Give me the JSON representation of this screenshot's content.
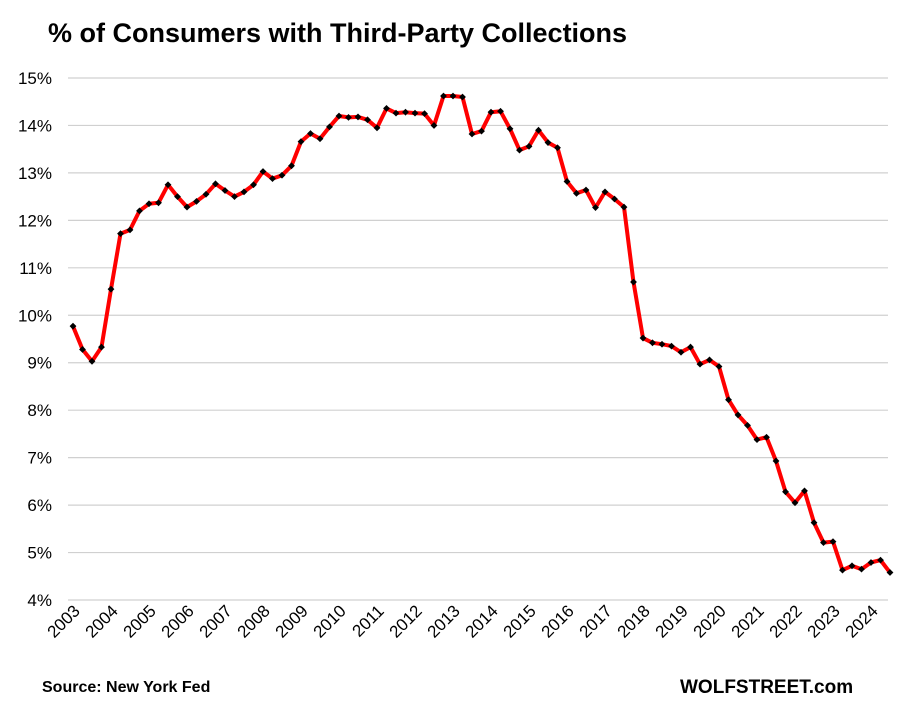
{
  "chart_data": {
    "type": "line",
    "title": "% of Consumers with Third-Party Collections",
    "xlabel": "",
    "ylabel": "",
    "ylim": [
      4,
      15
    ],
    "y_ticks": [
      "4%",
      "5%",
      "6%",
      "7%",
      "8%",
      "9%",
      "10%",
      "11%",
      "12%",
      "13%",
      "14%",
      "15%"
    ],
    "x_ticks": [
      "2003",
      "2004",
      "2005",
      "2006",
      "2007",
      "2008",
      "2009",
      "2010",
      "2011",
      "2012",
      "2013",
      "2014",
      "2015",
      "2016",
      "2017",
      "2018",
      "2019",
      "2020",
      "2021",
      "2022",
      "2023",
      "2024"
    ],
    "x_start": 2003.0,
    "x_step": 0.25,
    "grid": true,
    "series": [
      {
        "name": "% of Consumers with Third-Party Collections",
        "color": "#ff0000",
        "marker_color": "#000000",
        "values": [
          9.77,
          9.28,
          9.03,
          9.33,
          10.55,
          11.72,
          11.8,
          12.2,
          12.35,
          12.37,
          12.75,
          12.5,
          12.28,
          12.4,
          12.55,
          12.77,
          12.63,
          12.5,
          12.6,
          12.75,
          13.03,
          12.88,
          12.95,
          13.15,
          13.66,
          13.83,
          13.72,
          13.97,
          14.2,
          14.17,
          14.18,
          14.12,
          13.95,
          14.36,
          14.26,
          14.28,
          14.26,
          14.25,
          14.0,
          14.62,
          14.62,
          14.6,
          13.82,
          13.88,
          14.28,
          14.3,
          13.93,
          13.48,
          13.56,
          13.9,
          13.64,
          13.53,
          12.82,
          12.57,
          12.64,
          12.27,
          12.6,
          12.45,
          12.28,
          10.7,
          9.52,
          9.42,
          9.39,
          9.35,
          9.22,
          9.33,
          8.97,
          9.06,
          8.92,
          8.22,
          7.9,
          7.68,
          7.38,
          7.43,
          6.93,
          6.28,
          6.05,
          6.3,
          5.63,
          5.21,
          5.23,
          4.63,
          4.72,
          4.65,
          4.79,
          4.84,
          4.58
        ]
      }
    ]
  },
  "footer": {
    "source": "Source: New York Fed",
    "brand": "WOLFSTREET.com"
  }
}
